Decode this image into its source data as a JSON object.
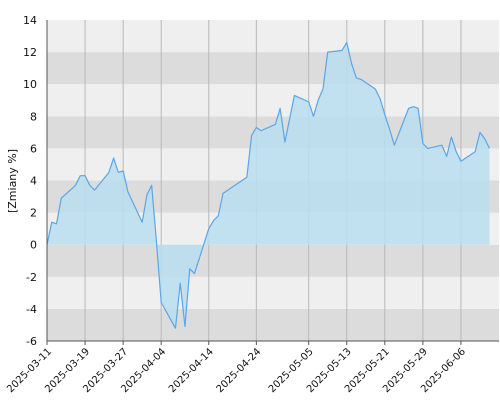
{
  "chart_data": {
    "type": "area",
    "title": "",
    "xlabel": "",
    "ylabel": "[Zmiany %]",
    "ylim": [
      -6,
      14
    ],
    "yticks": [
      -6,
      -4,
      -2,
      0,
      2,
      4,
      6,
      8,
      10,
      12,
      14
    ],
    "xlim": [
      "2025-03-11",
      "2025-06-14"
    ],
    "xticks": [
      "2025-03-11",
      "2025-03-19",
      "2025-03-27",
      "2025-04-04",
      "2025-04-14",
      "2025-04-24",
      "2025-05-05",
      "2025-05-13",
      "2025-05-21",
      "2025-05-29",
      "2025-06-06"
    ],
    "grid": "horizontal bands alternating light/dark gray, vertical gridlines at x ticks",
    "colors": {
      "line": "#5aa6e6",
      "fill": "#b8def0",
      "band_dark": "#dcdcdc",
      "band_light": "#efefef",
      "gridline": "#b8b8b8"
    },
    "series": [
      {
        "name": "",
        "x": [
          "2025-03-11",
          "2025-03-12",
          "2025-03-13",
          "2025-03-14",
          "2025-03-17",
          "2025-03-18",
          "2025-03-19",
          "2025-03-20",
          "2025-03-21",
          "2025-03-24",
          "2025-03-25",
          "2025-03-26",
          "2025-03-27",
          "2025-03-28",
          "2025-03-31",
          "2025-04-01",
          "2025-04-02",
          "2025-04-03",
          "2025-04-04",
          "2025-04-07",
          "2025-04-08",
          "2025-04-09",
          "2025-04-10",
          "2025-04-11",
          "2025-04-14",
          "2025-04-15",
          "2025-04-16",
          "2025-04-17",
          "2025-04-22",
          "2025-04-23",
          "2025-04-24",
          "2025-04-25",
          "2025-04-28",
          "2025-04-29",
          "2025-04-30",
          "2025-05-02",
          "2025-05-05",
          "2025-05-06",
          "2025-05-07",
          "2025-05-08",
          "2025-05-09",
          "2025-05-12",
          "2025-05-13",
          "2025-05-14",
          "2025-05-15",
          "2025-05-16",
          "2025-05-19",
          "2025-05-20",
          "2025-05-21",
          "2025-05-22",
          "2025-05-23",
          "2025-05-26",
          "2025-05-27",
          "2025-05-28",
          "2025-05-29",
          "2025-05-30",
          "2025-06-02",
          "2025-06-03",
          "2025-06-04",
          "2025-06-05",
          "2025-06-06",
          "2025-06-09",
          "2025-06-10",
          "2025-06-11",
          "2025-06-12"
        ],
        "values": [
          0.0,
          1.4,
          1.3,
          2.9,
          3.7,
          4.3,
          4.3,
          3.7,
          3.4,
          4.5,
          5.4,
          4.5,
          4.6,
          3.3,
          1.4,
          3.1,
          3.7,
          0.2,
          -3.6,
          -5.2,
          -2.4,
          -5.1,
          -1.5,
          -1.8,
          1.0,
          1.5,
          1.8,
          3.2,
          4.2,
          6.8,
          7.3,
          7.1,
          7.5,
          8.5,
          6.4,
          9.3,
          8.9,
          8.0,
          9.0,
          9.7,
          12.0,
          12.1,
          12.6,
          11.3,
          10.4,
          10.3,
          9.7,
          9.1,
          8.1,
          7.2,
          6.2,
          8.5,
          8.6,
          8.5,
          6.3,
          6.0,
          6.2,
          5.5,
          6.7,
          5.8,
          5.2,
          5.8,
          7.0,
          6.6,
          6.0
        ]
      }
    ]
  }
}
